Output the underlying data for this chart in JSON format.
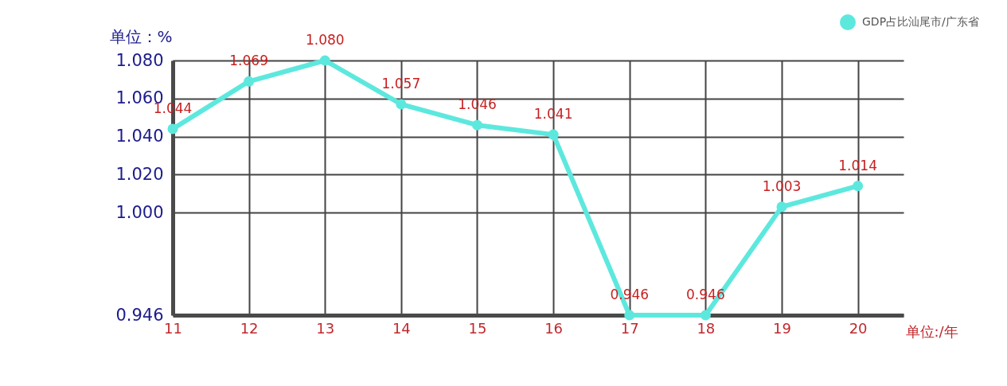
{
  "chart_data": {
    "type": "line",
    "xlabel": "单位:/年",
    "ylabel": "单位：%",
    "x": [
      11,
      12,
      13,
      14,
      15,
      16,
      17,
      18,
      19,
      20
    ],
    "xlim": [
      11,
      20.6
    ],
    "xticks": [
      11,
      12,
      13,
      14,
      15,
      16,
      17,
      18,
      19,
      20
    ],
    "ylim": [
      0.946,
      1.08
    ],
    "yticks": [
      0.946,
      {
        "value": 1.0,
        "label": "1.000"
      },
      {
        "value": 1.02,
        "label": "1.020"
      },
      {
        "value": 1.04,
        "label": "1.040"
      },
      {
        "value": 1.06,
        "label": "1.060"
      },
      {
        "value": 1.08,
        "label": "1.080"
      }
    ],
    "series": [
      {
        "name": "GDP占比汕尾市/广东省",
        "color": "#5de8de",
        "values": [
          1.044,
          1.069,
          1.08,
          1.057,
          1.046,
          1.041,
          0.946,
          0.946,
          1.003,
          1.014
        ],
        "value_labels": [
          "1.044",
          "1.069",
          "1.080",
          "1.057",
          "1.046",
          "1.041",
          "0.946",
          "0.946",
          "1.003",
          "1.014"
        ]
      }
    ],
    "marker": "circle",
    "line_style": "solid",
    "grid": true,
    "legend": "top right"
  }
}
